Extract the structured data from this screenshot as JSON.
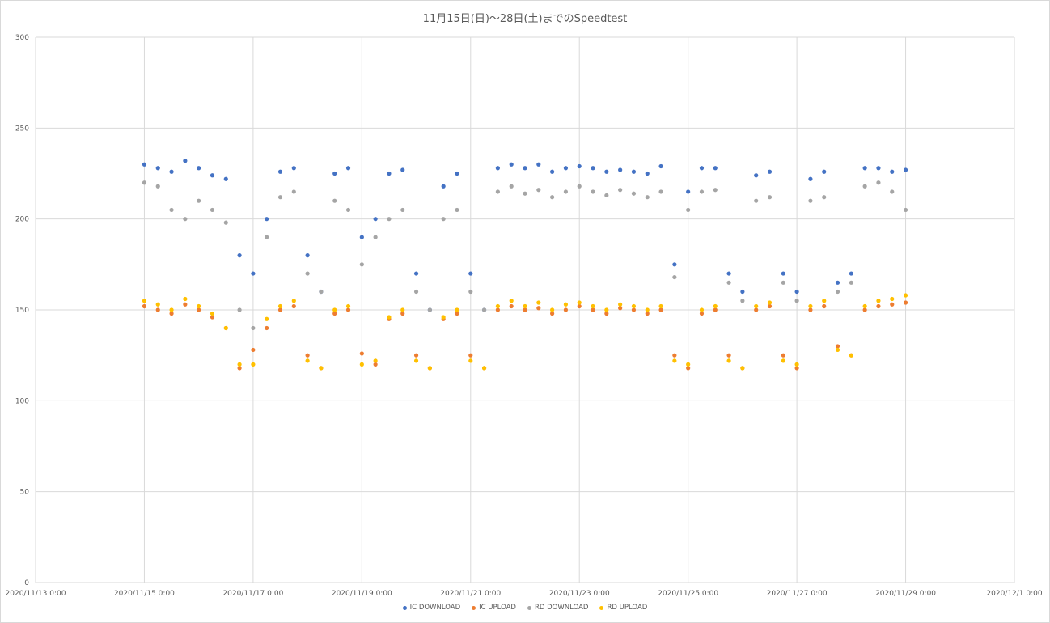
{
  "chart_data": {
    "type": "scatter",
    "title": "11月15日(日)〜28日(土)までのSpeedtest",
    "xlabel": "",
    "ylabel": "",
    "x_ticks": [
      "2020/11/13 0:00",
      "2020/11/15 0:00",
      "2020/11/17 0:00",
      "2020/11/19 0:00",
      "2020/11/21 0:00",
      "2020/11/23 0:00",
      "2020/11/25 0:00",
      "2020/11/27 0:00",
      "2020/11/29 0:00",
      "2020/12/1 0:00"
    ],
    "xlim": [
      "2020/11/13 0:00",
      "2020/12/1 0:00"
    ],
    "y_ticks": [
      0,
      50,
      100,
      150,
      200,
      250,
      300
    ],
    "ylim": [
      0,
      300
    ],
    "grid": true,
    "legend_position": "bottom",
    "series": [
      {
        "name": "IC DOWNLOAD",
        "color": "#4472c4",
        "x": [
          "2020/11/15 0:00",
          "2020/11/15 6:00",
          "2020/11/15 12:00",
          "2020/11/15 18:00",
          "2020/11/16 0:00",
          "2020/11/16 6:00",
          "2020/11/16 12:00",
          "2020/11/16 18:00",
          "2020/11/17 0:00",
          "2020/11/17 6:00",
          "2020/11/17 12:00",
          "2020/11/17 18:00",
          "2020/11/18 0:00",
          "2020/11/18 6:00",
          "2020/11/18 12:00",
          "2020/11/18 18:00",
          "2020/11/19 0:00",
          "2020/11/19 6:00",
          "2020/11/19 12:00",
          "2020/11/19 18:00",
          "2020/11/20 0:00",
          "2020/11/20 6:00",
          "2020/11/20 12:00",
          "2020/11/20 18:00",
          "2020/11/21 0:00",
          "2020/11/21 6:00",
          "2020/11/21 12:00",
          "2020/11/21 18:00",
          "2020/11/22 0:00",
          "2020/11/22 6:00",
          "2020/11/22 12:00",
          "2020/11/22 18:00",
          "2020/11/23 0:00",
          "2020/11/23 6:00",
          "2020/11/23 12:00",
          "2020/11/23 18:00",
          "2020/11/24 0:00",
          "2020/11/24 6:00",
          "2020/11/24 12:00",
          "2020/11/24 18:00",
          "2020/11/25 0:00",
          "2020/11/25 6:00",
          "2020/11/25 12:00",
          "2020/11/25 18:00",
          "2020/11/26 0:00",
          "2020/11/26 6:00",
          "2020/11/26 12:00",
          "2020/11/26 18:00",
          "2020/11/27 0:00",
          "2020/11/27 6:00",
          "2020/11/27 12:00",
          "2020/11/27 18:00",
          "2020/11/28 0:00",
          "2020/11/28 6:00",
          "2020/11/28 12:00",
          "2020/11/28 18:00",
          "2020/11/29 0:00"
        ],
        "y": [
          230,
          228,
          226,
          232,
          228,
          224,
          222,
          180,
          170,
          200,
          226,
          228,
          180,
          160,
          225,
          228,
          190,
          200,
          225,
          227,
          170,
          150,
          218,
          225,
          170,
          150,
          228,
          230,
          228,
          230,
          226,
          228,
          229,
          228,
          226,
          227,
          226,
          225,
          229,
          175,
          215,
          228,
          228,
          170,
          160,
          224,
          226,
          170,
          160,
          222,
          226,
          165,
          170,
          228,
          228,
          226,
          227
        ]
      },
      {
        "name": "IC UPLOAD",
        "color": "#ed7d31",
        "x": [
          "2020/11/15 0:00",
          "2020/11/15 6:00",
          "2020/11/15 12:00",
          "2020/11/15 18:00",
          "2020/11/16 0:00",
          "2020/11/16 6:00",
          "2020/11/16 12:00",
          "2020/11/16 18:00",
          "2020/11/17 0:00",
          "2020/11/17 6:00",
          "2020/11/17 12:00",
          "2020/11/17 18:00",
          "2020/11/18 0:00",
          "2020/11/18 6:00",
          "2020/11/18 12:00",
          "2020/11/18 18:00",
          "2020/11/19 0:00",
          "2020/11/19 6:00",
          "2020/11/19 12:00",
          "2020/11/19 18:00",
          "2020/11/20 0:00",
          "2020/11/20 6:00",
          "2020/11/20 12:00",
          "2020/11/20 18:00",
          "2020/11/21 0:00",
          "2020/11/21 6:00",
          "2020/11/21 12:00",
          "2020/11/21 18:00",
          "2020/11/22 0:00",
          "2020/11/22 6:00",
          "2020/11/22 12:00",
          "2020/11/22 18:00",
          "2020/11/23 0:00",
          "2020/11/23 6:00",
          "2020/11/23 12:00",
          "2020/11/23 18:00",
          "2020/11/24 0:00",
          "2020/11/24 6:00",
          "2020/11/24 12:00",
          "2020/11/24 18:00",
          "2020/11/25 0:00",
          "2020/11/25 6:00",
          "2020/11/25 12:00",
          "2020/11/25 18:00",
          "2020/11/26 0:00",
          "2020/11/26 6:00",
          "2020/11/26 12:00",
          "2020/11/26 18:00",
          "2020/11/27 0:00",
          "2020/11/27 6:00",
          "2020/11/27 12:00",
          "2020/11/27 18:00",
          "2020/11/28 0:00",
          "2020/11/28 6:00",
          "2020/11/28 12:00",
          "2020/11/28 18:00",
          "2020/11/29 0:00"
        ],
        "y": [
          152,
          150,
          148,
          153,
          150,
          146,
          140,
          118,
          128,
          140,
          150,
          152,
          125,
          118,
          148,
          150,
          126,
          120,
          145,
          148,
          125,
          118,
          145,
          148,
          125,
          118,
          150,
          152,
          150,
          151,
          148,
          150,
          152,
          150,
          148,
          151,
          150,
          148,
          150,
          125,
          118,
          148,
          150,
          125,
          118,
          150,
          152,
          125,
          118,
          150,
          152,
          130,
          125,
          150,
          152,
          153,
          154
        ]
      },
      {
        "name": "RD DOWNLOAD",
        "color": "#a5a5a5",
        "x": [
          "2020/11/15 0:00",
          "2020/11/15 6:00",
          "2020/11/15 12:00",
          "2020/11/15 18:00",
          "2020/11/16 0:00",
          "2020/11/16 6:00",
          "2020/11/16 12:00",
          "2020/11/16 18:00",
          "2020/11/17 0:00",
          "2020/11/17 6:00",
          "2020/11/17 12:00",
          "2020/11/17 18:00",
          "2020/11/18 0:00",
          "2020/11/18 6:00",
          "2020/11/18 12:00",
          "2020/11/18 18:00",
          "2020/11/19 0:00",
          "2020/11/19 6:00",
          "2020/11/19 12:00",
          "2020/11/19 18:00",
          "2020/11/20 0:00",
          "2020/11/20 6:00",
          "2020/11/20 12:00",
          "2020/11/20 18:00",
          "2020/11/21 0:00",
          "2020/11/21 6:00",
          "2020/11/21 12:00",
          "2020/11/21 18:00",
          "2020/11/22 0:00",
          "2020/11/22 6:00",
          "2020/11/22 12:00",
          "2020/11/22 18:00",
          "2020/11/23 0:00",
          "2020/11/23 6:00",
          "2020/11/23 12:00",
          "2020/11/23 18:00",
          "2020/11/24 0:00",
          "2020/11/24 6:00",
          "2020/11/24 12:00",
          "2020/11/24 18:00",
          "2020/11/25 0:00",
          "2020/11/25 6:00",
          "2020/11/25 12:00",
          "2020/11/25 18:00",
          "2020/11/26 0:00",
          "2020/11/26 6:00",
          "2020/11/26 12:00",
          "2020/11/26 18:00",
          "2020/11/27 0:00",
          "2020/11/27 6:00",
          "2020/11/27 12:00",
          "2020/11/27 18:00",
          "2020/11/28 0:00",
          "2020/11/28 6:00",
          "2020/11/28 12:00",
          "2020/11/28 18:00",
          "2020/11/29 0:00"
        ],
        "y": [
          220,
          218,
          205,
          200,
          210,
          205,
          198,
          150,
          140,
          190,
          212,
          215,
          170,
          160,
          210,
          205,
          175,
          190,
          200,
          205,
          160,
          150,
          200,
          205,
          160,
          150,
          215,
          218,
          214,
          216,
          212,
          215,
          218,
          215,
          213,
          216,
          214,
          212,
          215,
          168,
          205,
          215,
          216,
          165,
          155,
          210,
          212,
          165,
          155,
          210,
          212,
          160,
          165,
          218,
          220,
          215,
          205
        ]
      },
      {
        "name": "RD UPLOAD",
        "color": "#ffc000",
        "x": [
          "2020/11/15 0:00",
          "2020/11/15 6:00",
          "2020/11/15 12:00",
          "2020/11/15 18:00",
          "2020/11/16 0:00",
          "2020/11/16 6:00",
          "2020/11/16 12:00",
          "2020/11/16 18:00",
          "2020/11/17 0:00",
          "2020/11/17 6:00",
          "2020/11/17 12:00",
          "2020/11/17 18:00",
          "2020/11/18 0:00",
          "2020/11/18 6:00",
          "2020/11/18 12:00",
          "2020/11/18 18:00",
          "2020/11/19 0:00",
          "2020/11/19 6:00",
          "2020/11/19 12:00",
          "2020/11/19 18:00",
          "2020/11/20 0:00",
          "2020/11/20 6:00",
          "2020/11/20 12:00",
          "2020/11/20 18:00",
          "2020/11/21 0:00",
          "2020/11/21 6:00",
          "2020/11/21 12:00",
          "2020/11/21 18:00",
          "2020/11/22 0:00",
          "2020/11/22 6:00",
          "2020/11/22 12:00",
          "2020/11/22 18:00",
          "2020/11/23 0:00",
          "2020/11/23 6:00",
          "2020/11/23 12:00",
          "2020/11/23 18:00",
          "2020/11/24 0:00",
          "2020/11/24 6:00",
          "2020/11/24 12:00",
          "2020/11/24 18:00",
          "2020/11/25 0:00",
          "2020/11/25 6:00",
          "2020/11/25 12:00",
          "2020/11/25 18:00",
          "2020/11/26 0:00",
          "2020/11/26 6:00",
          "2020/11/26 12:00",
          "2020/11/26 18:00",
          "2020/11/27 0:00",
          "2020/11/27 6:00",
          "2020/11/27 12:00",
          "2020/11/27 18:00",
          "2020/11/28 0:00",
          "2020/11/28 6:00",
          "2020/11/28 12:00",
          "2020/11/28 18:00",
          "2020/11/29 0:00"
        ],
        "y": [
          155,
          153,
          150,
          156,
          152,
          148,
          140,
          120,
          120,
          145,
          152,
          155,
          122,
          118,
          150,
          152,
          120,
          122,
          146,
          150,
          122,
          118,
          146,
          150,
          122,
          118,
          152,
          155,
          152,
          154,
          150,
          153,
          154,
          152,
          150,
          153,
          152,
          150,
          152,
          122,
          120,
          150,
          152,
          122,
          118,
          152,
          154,
          122,
          120,
          152,
          155,
          128,
          125,
          152,
          155,
          156,
          158
        ]
      }
    ]
  },
  "legend": {
    "ic_download": "IC DOWNLOAD",
    "ic_upload": "IC UPLOAD",
    "rd_download": "RD DOWNLOAD",
    "rd_upload": "RD UPLOAD"
  }
}
